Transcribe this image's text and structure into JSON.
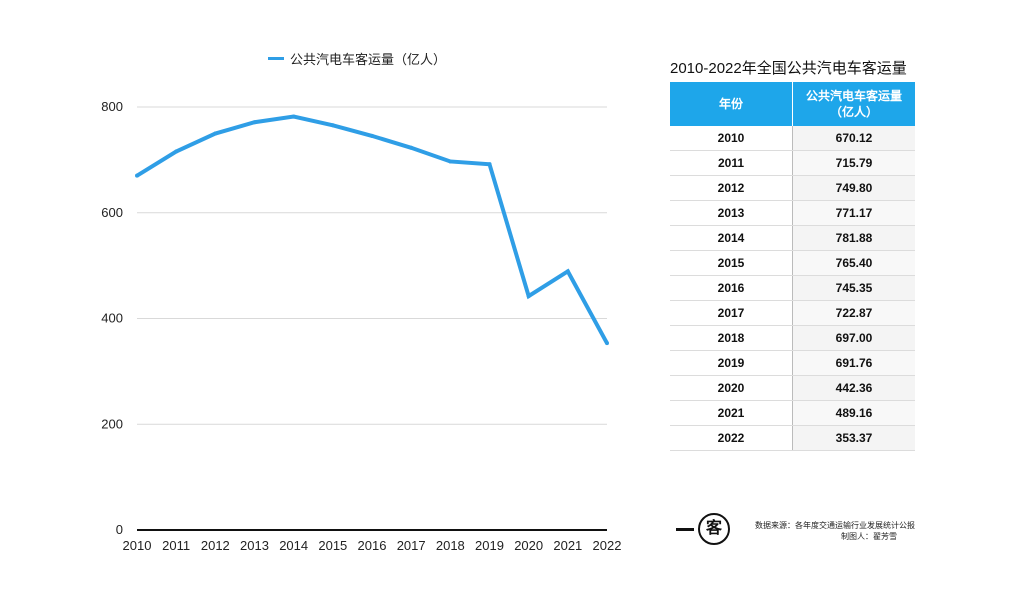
{
  "legend": {
    "label": "公共汽电车客运量（亿人）"
  },
  "chart_data": {
    "type": "line",
    "title": "",
    "xlabel": "",
    "ylabel": "",
    "x": [
      "2010",
      "2011",
      "2012",
      "2013",
      "2014",
      "2015",
      "2016",
      "2017",
      "2018",
      "2019",
      "2020",
      "2021",
      "2022"
    ],
    "series": [
      {
        "name": "公共汽电车客运量（亿人）",
        "values": [
          670.12,
          715.79,
          749.8,
          771.17,
          781.88,
          765.4,
          745.35,
          722.87,
          697.0,
          691.76,
          442.36,
          489.16,
          353.37
        ],
        "color": "#2f9ee6"
      }
    ],
    "ylim": [
      0,
      800
    ],
    "yticks": [
      0,
      200,
      400,
      600,
      800
    ],
    "grid": true,
    "legend_position": "top"
  },
  "table": {
    "title": "2010-2022年全国公共汽电车客运量",
    "headers": [
      "年份",
      "公共汽电车客运量\n（亿人）"
    ],
    "rows": [
      [
        "2010",
        "670.12"
      ],
      [
        "2011",
        "715.79"
      ],
      [
        "2012",
        "749.80"
      ],
      [
        "2013",
        "771.17"
      ],
      [
        "2014",
        "781.88"
      ],
      [
        "2015",
        "765.40"
      ],
      [
        "2016",
        "745.35"
      ],
      [
        "2017",
        "722.87"
      ],
      [
        "2018",
        "697.00"
      ],
      [
        "2019",
        "691.76"
      ],
      [
        "2020",
        "442.36"
      ],
      [
        "2021",
        "489.16"
      ],
      [
        "2022",
        "353.37"
      ]
    ],
    "header_color": "#1ea6ea"
  },
  "logo": {
    "text": "客"
  },
  "source": {
    "line1": "数据来源：各年度交通运输行业发展统计公报",
    "line2": "制图人：翟芳雪"
  }
}
